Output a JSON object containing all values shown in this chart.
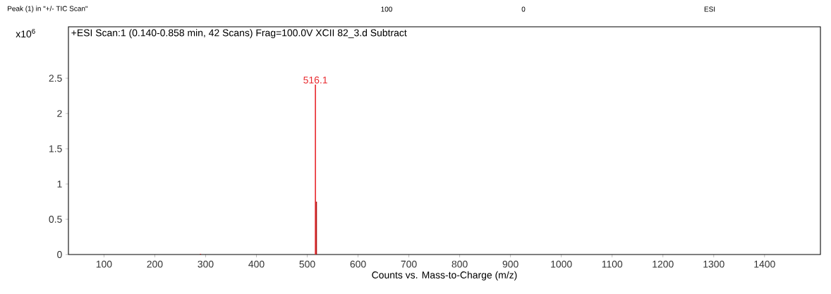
{
  "chart_data": {
    "type": "bar",
    "title": "+ESI Scan:1 (0.140-0.858 min, 42 Scans) Frag=100.0V XCII 82_3.d  Subtract",
    "xlabel": "Counts vs. Mass-to-Charge (m/z)",
    "annotations": [
      "Peak (1) in \"+/- TIC Scan\"",
      "100",
      "0",
      "ESI",
      "x10$^{6}$",
      {
        "text": "516.1",
        "x": 516.1,
        "y": 2.41
      }
    ],
    "x": [
      290,
      516.1,
      518
    ],
    "series": [
      {
        "values": [
          0.01,
          2.41,
          0.75
        ],
        "colors": [
          "#b01818",
          "#e8262b",
          "#b01818"
        ]
      }
    ],
    "xlim": [
      30,
      1510
    ],
    "ylim": [
      0,
      3.23
    ],
    "xticks": [
      100,
      200,
      300,
      400,
      500,
      600,
      700,
      800,
      900,
      1000,
      1100,
      1200,
      1300,
      1400
    ],
    "yticks": [
      0,
      0.5,
      1,
      1.5,
      2,
      2.5
    ],
    "grid": false
  }
}
